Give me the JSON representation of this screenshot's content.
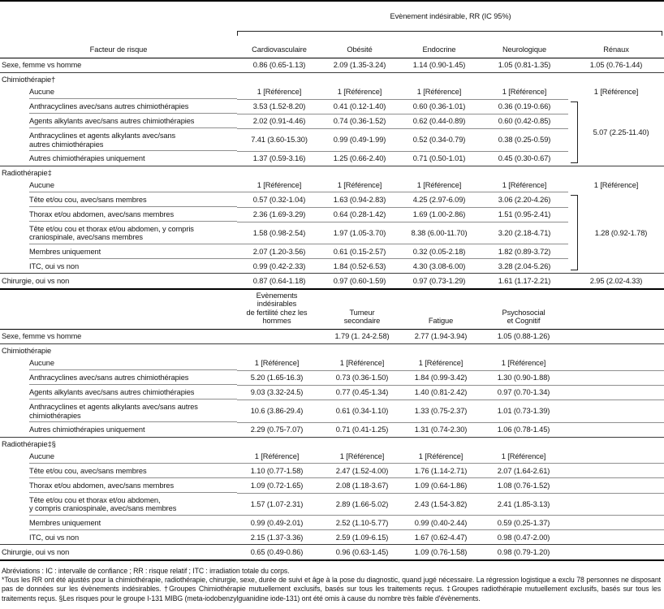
{
  "table1": {
    "spanner_label": "Evènement indésirable, RR (IC 95%)",
    "facteur_header": "Facteur de risque",
    "columns": [
      "Cardiovasculaire",
      "Obésité",
      "Endocrine",
      "Neurologique",
      "Rénaux"
    ],
    "reference_value": "1 [Référence]",
    "rows": [
      {
        "type": "top",
        "label": "Sexe, femme vs homme",
        "cells": [
          "0.86 (0.65-1.13)",
          "2.09 (1.35-3.24)",
          "1.14 (0.90-1.45)",
          "1.05 (0.81-1.35)",
          "1.05 (0.76-1.44)"
        ],
        "line": "sec"
      },
      {
        "type": "section",
        "label": "Chimiothérapie†"
      },
      {
        "type": "sub",
        "label": "Aucune",
        "cells": [
          "1 [Référence]",
          "1 [Référence]",
          "1 [Référence]",
          "1 [Référence]",
          "1 [Référence]"
        ],
        "line": "inner",
        "last_no_line": true
      },
      {
        "type": "sub",
        "label": "Anthracyclines avec/sans autres chimiothérapies",
        "cells": [
          "3.53 (1.52-8.20)",
          "0.41 (0.12-1.40)",
          "0.60 (0.36-1.01)",
          "0.36 (0.19-0.66)"
        ],
        "bracket": {
          "value": "5.07 (2.25-11.40)",
          "span": 4
        },
        "line": "inner"
      },
      {
        "type": "sub",
        "label": "Agents alkylants avec/sans autres chimiothérapies",
        "cells": [
          "2.02 (0.91-4.46)",
          "0.74 (0.36-1.52)",
          "0.62 (0.44-0.89)",
          "0.60 (0.42-0.85)"
        ],
        "line": "inner"
      },
      {
        "type": "sub",
        "label": "Anthracyclines et agents alkylants avec/sans\nautres chimiothérapies",
        "cells": [
          "7.41 (3.60-15.30)",
          "0.99 (0.49-1.99)",
          "0.52 (0.34-0.79)",
          "0.38 (0.25-0.59)"
        ],
        "line": "inner"
      },
      {
        "type": "sub",
        "label": "Autres chimiothérapies uniquement",
        "cells": [
          "1.37 (0.59-3.16)",
          "1.25 (0.66-2.40)",
          "0.71 (0.50-1.01)",
          "0.45 (0.30-0.67)"
        ],
        "line": "sec"
      },
      {
        "type": "section",
        "label": "Radiothérapie‡"
      },
      {
        "type": "sub",
        "label": "Aucune",
        "cells": [
          "1 [Référence]",
          "1 [Référence]",
          "1 [Référence]",
          "1 [Référence]",
          "1 [Référence]"
        ],
        "line": "inner",
        "last_no_line": true
      },
      {
        "type": "sub",
        "label": "Tête et/ou cou, avec/sans membres",
        "cells": [
          "0.57 (0.32-1.04)",
          "1.63 (0.94-2.83)",
          "4.25 (2.97-6.09)",
          "3.06 (2.20-4.26)"
        ],
        "bracket": {
          "value": "1.28 (0.92-1.78)",
          "span": 5
        },
        "line": "inner"
      },
      {
        "type": "sub",
        "label": "Thorax et/ou abdomen, avec/sans membres",
        "cells": [
          "2.36 (1.69-3.29)",
          "0.64 (0.28-1.42)",
          "1.69 (1.00-2.86)",
          "1.51 (0.95-2.41)"
        ],
        "line": "inner"
      },
      {
        "type": "sub",
        "label": "Tête et/ou cou et thorax et/ou abdomen, y compris\ncraniospinale, avec/sans membres",
        "cells": [
          "1.58 (0.98-2.54)",
          "1.97 (1.05-3.70)",
          "8.38 (6.00-11.70)",
          "3.20 (2.18-4.71)"
        ],
        "line": "inner"
      },
      {
        "type": "sub",
        "label": "Membres uniquement",
        "cells": [
          "2.07 (1.20-3.56)",
          "0.61 (0.15-2.57)",
          "0.32 (0.05-2.18)",
          "1.82 (0.89-3.72)"
        ],
        "line": "inner"
      },
      {
        "type": "sub",
        "label": "ITC, oui vs non",
        "cells": [
          "0.99 (0.42-2.33)",
          "1.84 (0.52-6.53)",
          "4.30 (3.08-6.00)",
          "3.28 (2.04-5.26)"
        ],
        "line": "sec"
      },
      {
        "type": "top",
        "label": "Chirurgie, oui vs non",
        "cells": [
          "0.87 (0.64-1.18)",
          "0.97 (0.60-1.59)",
          "0.97 (0.73-1.29)",
          "1.61 (1.17-2.21)",
          "2.95 (2.02-4.33)"
        ],
        "line": "none"
      }
    ]
  },
  "table2": {
    "columns": [
      "Evènements indésirables\nde fertilité chez les hommes",
      "Tumeur\nsecondaire",
      "Fatigue",
      "Psychosocial\net Cognitif"
    ],
    "rows": [
      {
        "type": "top",
        "label": "Sexe, femme vs homme",
        "cells": [
          "",
          "1.79 (1. 24-2.58)",
          "2.77 (1.94-3.94)",
          "1.05 (0.88-1.26)"
        ],
        "line": "sec"
      },
      {
        "type": "section",
        "label": "Chimiothérapie"
      },
      {
        "type": "sub",
        "label": "Aucune",
        "cells": [
          "1 [Référence]",
          "1 [Référence]",
          "1 [Référence]",
          "1 [Référence]"
        ],
        "line": "inner"
      },
      {
        "type": "sub",
        "label": "Anthracyclines avec/sans autres chimiothérapies",
        "cells": [
          "5.20 (1.65-16.3)",
          "0.73 (0.36-1.50)",
          "1.84 (0.99-3.42)",
          "1.30 (0.90-1.88)"
        ],
        "line": "inner"
      },
      {
        "type": "sub",
        "label": "Agents alkylants avec/sans autres chimiothérapies",
        "cells": [
          "9.03 (3.32-24.5)",
          "0.77 (0.45-1.34)",
          "1.40 (0.81-2.42)",
          "0.97 (0.70-1.34)"
        ],
        "line": "inner"
      },
      {
        "type": "sub",
        "label": "Anthracyclines et agents alkylants avec/sans autres\nchimiothérapies",
        "cells": [
          "10.6 (3.86-29.4)",
          "0.61 (0.34-1.10)",
          "1.33 (0.75-2.37)",
          "1.01 (0.73-1.39)"
        ],
        "line": "inner"
      },
      {
        "type": "sub",
        "label": "Autres chimiothérapies uniquement",
        "cells": [
          "2.29 (0.75-7.07)",
          "0.71 (0.41-1.25)",
          "1.31 (0.74-2.30)",
          "1.06 (0.78-1.45)"
        ],
        "line": "sec"
      },
      {
        "type": "section",
        "label": "Radiothérapie‡§"
      },
      {
        "type": "sub",
        "label": "Aucune",
        "cells": [
          "1 [Référence]",
          "1 [Référence]",
          "1 [Référence]",
          "1 [Référence]"
        ],
        "line": "inner"
      },
      {
        "type": "sub",
        "label": "Tête et/ou cou, avec/sans membres",
        "cells": [
          "1.10 (0.77-1.58)",
          "2.47 (1.52-4.00)",
          "1.76 (1.14-2.71)",
          "2.07 (1.64-2.61)"
        ],
        "line": "inner"
      },
      {
        "type": "sub",
        "label": "Thorax et/ou abdomen, avec/sans membres",
        "cells": [
          "1.09 (0.72-1.65)",
          "2.08 (1.18-3.67)",
          "1.09 (0.64-1.86)",
          "1.08 (0.76-1.52)"
        ],
        "line": "inner"
      },
      {
        "type": "sub",
        "label": "Tête et/ou cou et thorax et/ou abdomen,\ny compris craniospinale, avec/sans membres",
        "cells": [
          "1.57 (1.07-2.31)",
          "2.89 (1.66-5.02)",
          "2.43 (1.54-3.82)",
          "2.41 (1.85-3.13)"
        ],
        "line": "inner"
      },
      {
        "type": "sub",
        "label": "Membres uniquement",
        "cells": [
          "0.99 (0.49-2.01)",
          "2.52 (1.10-5.77)",
          "0.99 (0.40-2.44)",
          "0.59 (0.25-1.37)"
        ],
        "line": "inner"
      },
      {
        "type": "sub",
        "label": "ITC, oui vs non",
        "cells": [
          "2.15 (1.37-3.36)",
          "2.59 (1.09-6.15)",
          "1.67 (0.62-4.47)",
          "0.98 (0.47-2.00)"
        ],
        "line": "sec"
      },
      {
        "type": "top",
        "label": "Chirurgie, oui vs non",
        "cells": [
          "0.65 (0.49-0.86)",
          "0.96 (0.63-1.45)",
          "1.09 (0.76-1.58)",
          "0.98 (0.79-1.20)"
        ],
        "line": "none"
      }
    ]
  },
  "footnotes": {
    "abbreviations": "Abréviations : IC : intervalle de confiance ; RR : risque relatif ; ITC : irradiation totale du corps.",
    "notes": "*Tous les RR ont été ajustés pour la chimiothérapie, radiothérapie, chirurgie, sexe, durée de suivi et âge à la pose du diagnostic, quand jugé nécessaire. La régression logistique a exclu 78 personnes ne disposant pas de données sur les évènements indésirables. †Groupes Chimiothérapie mutuellement exclusifs, basés sur tous les traitements reçus. ‡Groupes radiothérapie mutuellement exclusifs, basés sur tous les traitements reçus. §Les risques pour le groupe I-131 MIBG (meta-iodobenzylguanidine iode-131) ont été omis à cause du nombre très faible d'évènements."
  },
  "style_colors": {
    "text": "#161616",
    "inner_rule": "#8f8f8f",
    "section_rule": "#3c3c3c",
    "frame_rule": "#000000"
  }
}
